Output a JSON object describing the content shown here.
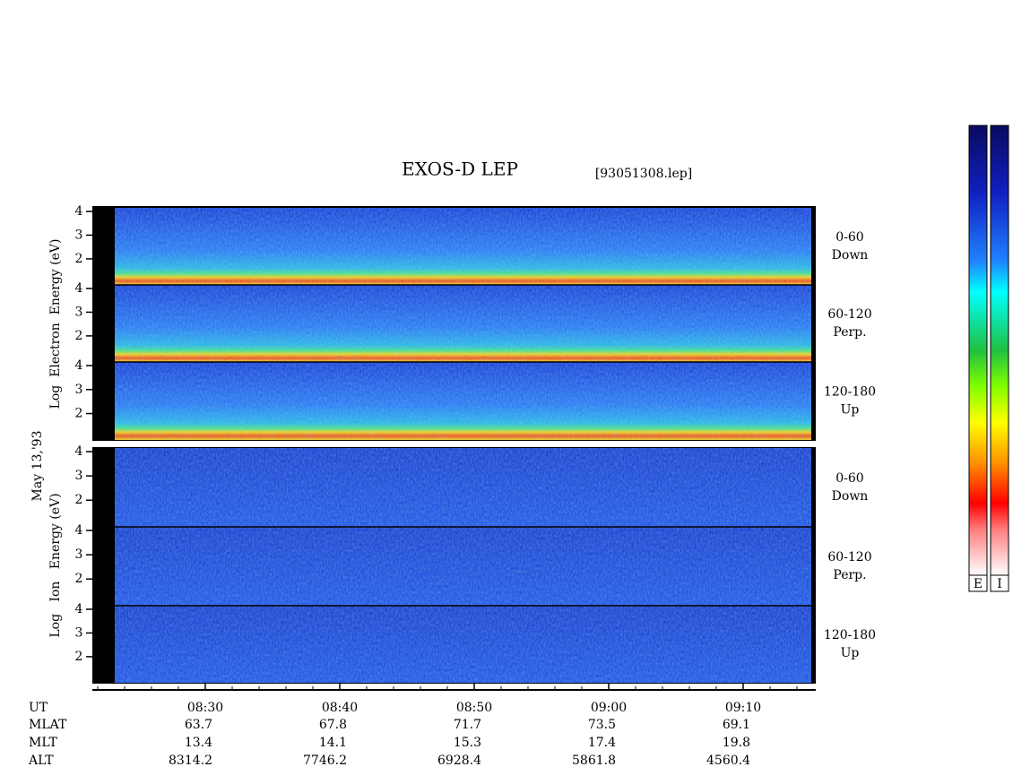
{
  "title": "EXOS-D LEP",
  "file": "[93051308.lep]",
  "date": "May 13,'93",
  "groups": [
    {
      "ylabel": "Log  Electron  Energy (eV)",
      "panels": [
        [
          "0-60",
          "Down"
        ],
        [
          "60-120",
          "Perp."
        ],
        [
          "120-180",
          "Up"
        ]
      ]
    },
    {
      "ylabel": "Log   Ion   Energy (eV)",
      "panels": [
        [
          "0-60",
          "Down"
        ],
        [
          "60-120",
          "Perp."
        ],
        [
          "120-180",
          "Up"
        ]
      ]
    }
  ],
  "ylim": [
    0.9,
    4.15
  ],
  "yticks": [
    2,
    3,
    4
  ],
  "xlim": [
    21.6,
    75.4
  ],
  "xticks": [
    {
      "value": 30,
      "label": "08:30"
    },
    {
      "value": 40,
      "label": "08:40"
    },
    {
      "value": 50,
      "label": "08:50"
    },
    {
      "value": 60,
      "label": "09:00"
    },
    {
      "value": 70,
      "label": "09:10"
    }
  ],
  "xminorticks": [
    22,
    24,
    26,
    28,
    32,
    34,
    36,
    38,
    42,
    44,
    46,
    48,
    52,
    54,
    56,
    58,
    62,
    64,
    66,
    68,
    72,
    74
  ],
  "orbit": {
    "labels": [
      "UT",
      "MLAT",
      "MLT",
      "ALT"
    ],
    "rows": [
      [
        "63.7",
        "67.8",
        "71.7",
        "73.5",
        "69.1"
      ],
      [
        "13.4",
        "14.1",
        "15.3",
        "17.4",
        "19.8"
      ],
      [
        "8314.2",
        "7746.2",
        "6928.4",
        "5861.8",
        "4560.4"
      ]
    ]
  },
  "colorbars": [
    "E",
    "I"
  ]
}
